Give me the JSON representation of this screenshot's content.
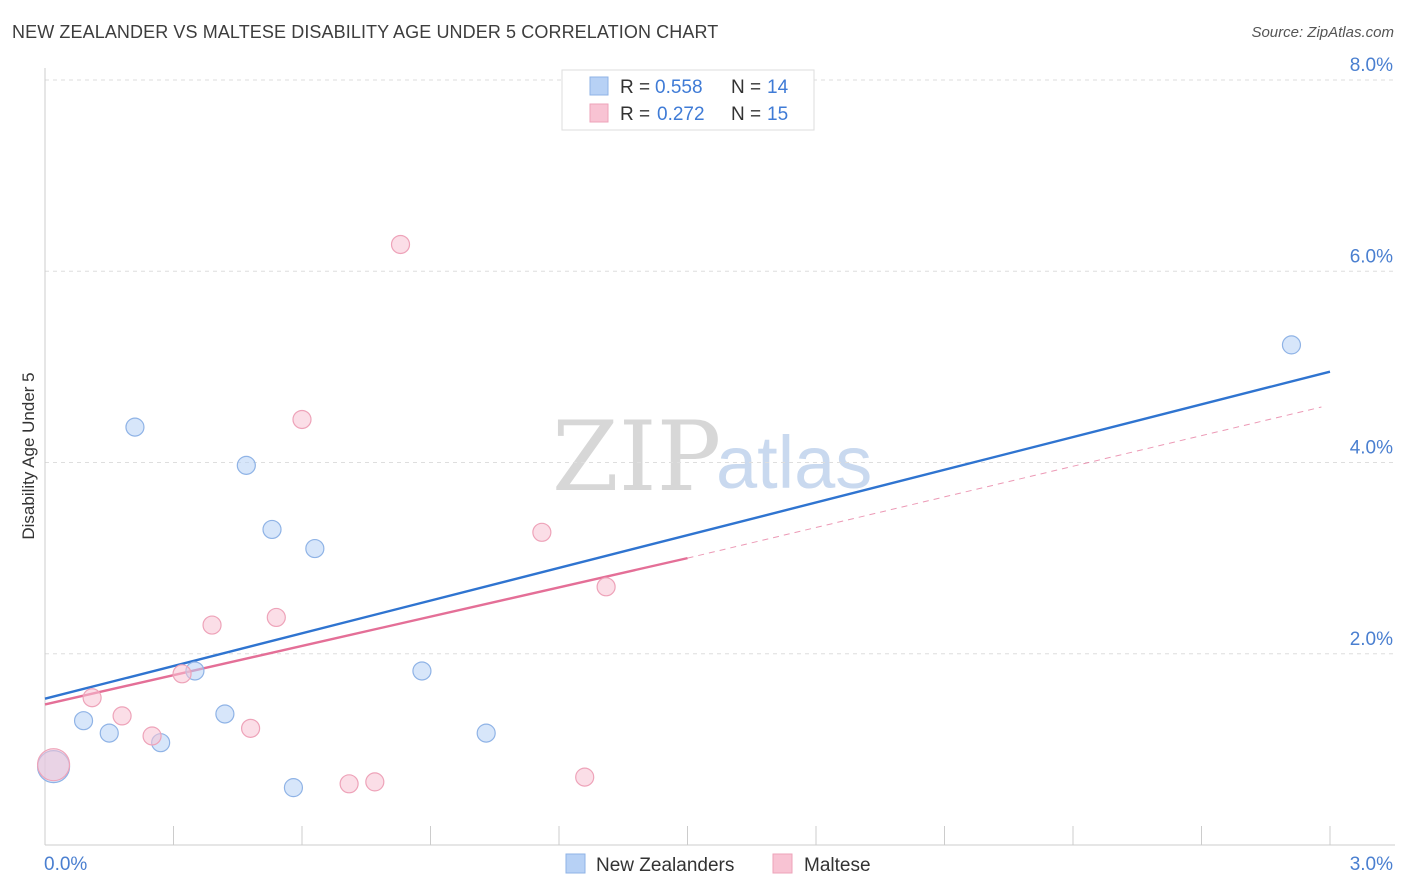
{
  "header": {
    "title": "NEW ZEALANDER VS MALTESE DISABILITY AGE UNDER 5 CORRELATION CHART",
    "source": "Source: ZipAtlas.com"
  },
  "watermark": {
    "zip": "ZIP",
    "atlas": "atlas"
  },
  "chart_data": {
    "type": "scatter",
    "title": "NEW ZEALANDER VS MALTESE DISABILITY AGE UNDER 5 CORRELATION CHART",
    "xlabel": "",
    "ylabel": "Disability Age Under 5",
    "xlim": [
      0,
      3.0
    ],
    "ylim": [
      0,
      8.0
    ],
    "x_tick_labels": [
      "0.0%",
      "3.0%"
    ],
    "y_ticks": [
      2.0,
      4.0,
      6.0,
      8.0
    ],
    "y_tick_labels": [
      "2.0%",
      "4.0%",
      "6.0%",
      "8.0%"
    ],
    "grid": true,
    "legend_stats": [
      {
        "r_label": "R =",
        "r_value": "0.558",
        "n_label": "N =",
        "n_value": "14"
      },
      {
        "r_label": "R =",
        "r_value": "0.272",
        "n_label": "N =",
        "n_value": "15"
      }
    ],
    "colors": {
      "blue_fill": "#b7d1f5",
      "blue_stroke": "#8fb3e6",
      "blue_line": "#2f74d0",
      "pink_fill": "#f8c3d3",
      "pink_stroke": "#eea3b9",
      "pink_line": "#e46f97",
      "value_text": "#3f7bd6",
      "grid": "#dedede",
      "axis": "#cccccc"
    },
    "series": [
      {
        "name": "New Zealanders",
        "x": [
          0.02,
          0.09,
          0.15,
          0.21,
          0.27,
          0.35,
          0.42,
          0.47,
          0.53,
          0.58,
          0.63,
          0.88,
          1.03,
          2.91
        ],
        "y": [
          0.82,
          1.3,
          1.17,
          4.37,
          1.07,
          1.82,
          1.37,
          3.97,
          3.3,
          0.6,
          3.1,
          1.82,
          1.17,
          5.23
        ],
        "sizes": [
          16,
          9,
          9,
          9,
          9,
          9,
          9,
          9,
          9,
          9,
          9,
          9,
          9,
          9
        ],
        "trend": {
          "x": [
            0,
            3.0
          ],
          "y": [
            1.53,
            4.95
          ],
          "style": "solid"
        }
      },
      {
        "name": "Maltese",
        "x": [
          0.02,
          0.11,
          0.18,
          0.25,
          0.32,
          0.39,
          0.48,
          0.54,
          0.6,
          0.71,
          0.77,
          0.83,
          1.16,
          1.26,
          1.31
        ],
        "y": [
          0.84,
          1.54,
          1.35,
          1.14,
          1.79,
          2.3,
          1.22,
          2.38,
          4.45,
          0.64,
          0.66,
          6.28,
          3.27,
          0.71,
          2.7
        ],
        "sizes": [
          16,
          9,
          9,
          9,
          9,
          9,
          9,
          9,
          9,
          9,
          9,
          9,
          9,
          9,
          9
        ],
        "trend": {
          "x": [
            0,
            1.5
          ],
          "y": [
            1.47,
            3.0
          ],
          "style": "solid"
        },
        "trend_extension": {
          "x": [
            1.5,
            2.98
          ],
          "y": [
            3.0,
            4.58
          ],
          "style": "dashed"
        }
      }
    ]
  }
}
